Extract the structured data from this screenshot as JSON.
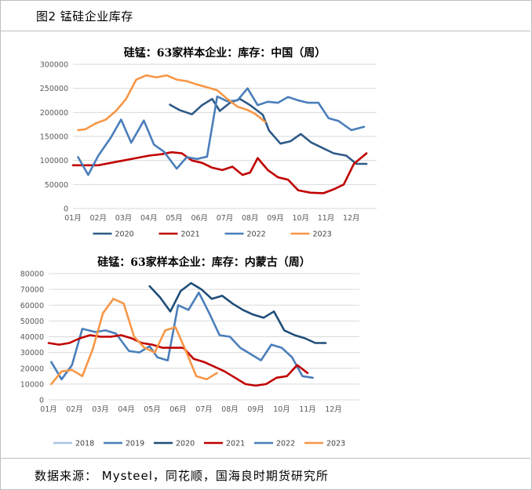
{
  "header": {
    "title": "图2 锰硅企业库存"
  },
  "footer": {
    "source": "数据来源：  Mysteel，同花顺，国海良时期货研究所"
  },
  "chart_data": [
    {
      "type": "line",
      "title": "硅锰：63家样本企业：库存：中国（周）",
      "x_labels": [
        "01月",
        "02月",
        "03月",
        "04月",
        "05月",
        "06月",
        "07月",
        "08月",
        "09月",
        "10月",
        "11月",
        "12月"
      ],
      "x_domain": [
        1,
        13
      ],
      "ylim": [
        0,
        300000
      ],
      "y_ticks": [
        0,
        50000,
        100000,
        150000,
        200000,
        250000,
        300000
      ],
      "grid": true,
      "legend_position": "bottom",
      "series": [
        {
          "name": "2020",
          "color": "#2e5a87",
          "x": [
            4.83,
            5.2,
            5.7,
            6.1,
            6.5,
            6.8,
            7.2,
            7.6,
            8.0,
            8.5,
            8.75,
            9.2,
            9.6,
            10.0,
            10.4,
            10.9,
            11.3,
            11.8,
            12.2,
            12.6
          ],
          "y": [
            216000,
            205000,
            196000,
            215000,
            228000,
            203000,
            220000,
            228000,
            215000,
            195000,
            162000,
            135000,
            140000,
            155000,
            138000,
            125000,
            115000,
            110000,
            93000,
            93000
          ]
        },
        {
          "name": "2021",
          "color": "#c00000",
          "x": [
            1.0,
            1.5,
            2.0,
            2.5,
            3.0,
            3.5,
            4.0,
            4.5,
            4.9,
            5.3,
            5.7,
            6.1,
            6.5,
            6.9,
            7.3,
            7.7,
            8.0,
            8.3,
            8.7,
            9.1,
            9.5,
            9.9,
            10.4,
            10.9,
            11.3,
            11.7,
            12.1,
            12.6
          ],
          "y": [
            90000,
            90000,
            90000,
            95000,
            100000,
            105000,
            110000,
            113000,
            117000,
            115000,
            100000,
            95000,
            85000,
            80000,
            87000,
            70000,
            75000,
            105000,
            80000,
            65000,
            60000,
            38000,
            33000,
            32000,
            40000,
            50000,
            93000,
            115000
          ]
        },
        {
          "name": "2022",
          "color": "#4a7ebb",
          "x": [
            1.2,
            1.6,
            2.0,
            2.5,
            2.9,
            3.3,
            3.8,
            4.2,
            4.6,
            5.1,
            5.5,
            5.9,
            6.3,
            6.7,
            7.1,
            7.5,
            7.9,
            8.3,
            8.7,
            9.1,
            9.5,
            9.9,
            10.3,
            10.7,
            11.1,
            11.5,
            12.0,
            12.5
          ],
          "y": [
            107000,
            70000,
            110000,
            148000,
            185000,
            137000,
            183000,
            133000,
            118000,
            83000,
            107000,
            103000,
            108000,
            233000,
            223000,
            225000,
            250000,
            215000,
            222000,
            220000,
            232000,
            225000,
            220000,
            220000,
            188000,
            182000,
            163000,
            170000
          ]
        },
        {
          "name": "2023",
          "color": "#f79646",
          "x": [
            1.2,
            1.5,
            1.9,
            2.3,
            2.7,
            3.1,
            3.5,
            3.9,
            4.3,
            4.7,
            5.1,
            5.5,
            5.9,
            6.3,
            6.7,
            7.1,
            7.5,
            7.9,
            8.2,
            8.6
          ],
          "y": [
            163000,
            165000,
            177000,
            185000,
            203000,
            228000,
            268000,
            277000,
            273000,
            277000,
            268000,
            265000,
            258000,
            252000,
            246000,
            228000,
            212000,
            205000,
            197000,
            180000
          ]
        }
      ]
    },
    {
      "type": "line",
      "title": "硅锰：63家样本企业：库存：内蒙古（周）",
      "x_labels": [
        "01月",
        "02月",
        "03月",
        "04月",
        "05月",
        "06月",
        "07月",
        "08月",
        "09月",
        "10月",
        "11月",
        "12月"
      ],
      "x_domain": [
        1,
        13
      ],
      "ylim": [
        0,
        80000
      ],
      "y_ticks": [
        0,
        10000,
        20000,
        30000,
        40000,
        50000,
        60000,
        70000,
        80000
      ],
      "grid": true,
      "legend_position": "bottom",
      "series": [
        {
          "name": "2018",
          "color": "#a9c4e4",
          "x": [],
          "y": []
        },
        {
          "name": "2019",
          "color": "#4a7ebb",
          "x": [
            1.1,
            1.5,
            1.9,
            2.3,
            2.8,
            3.2,
            3.6,
            4.1,
            4.5,
            4.9,
            5.2,
            5.6,
            6.0,
            6.4,
            6.8,
            7.2,
            7.6,
            8.0,
            8.4,
            8.8,
            9.2,
            9.6,
            10.0,
            10.4,
            10.8,
            11.2,
            11.6,
            12.0,
            12.4,
            12.8
          ],
          "y": [
            24000,
            13000,
            22000,
            45000,
            43000,
            44000,
            42000,
            31000,
            30000,
            34000,
            27000,
            25000,
            60000,
            57000,
            68000,
            55000,
            41000,
            40000,
            33000,
            29000,
            25000,
            35000,
            33000,
            27000,
            15000,
            14000,
            null,
            null,
            null,
            null
          ]
        },
        {
          "name": "2020",
          "color": "#1f4e79",
          "x": [
            4.9,
            5.3,
            5.7,
            6.1,
            6.5,
            6.9,
            7.3,
            7.7,
            8.1,
            8.5,
            8.9,
            9.3,
            9.7,
            10.1,
            10.5,
            10.9,
            11.3,
            11.7,
            12.1,
            12.5
          ],
          "y": [
            72000,
            65000,
            56000,
            69000,
            74000,
            70000,
            64000,
            66000,
            61000,
            57000,
            54000,
            52000,
            56000,
            44000,
            41000,
            39000,
            36000,
            36000,
            null,
            null
          ]
        },
        {
          "name": "2021",
          "color": "#c00000",
          "x": [
            1.0,
            1.4,
            1.8,
            2.2,
            2.6,
            3.0,
            3.4,
            3.8,
            4.2,
            4.6,
            5.0,
            5.4,
            5.8,
            6.2,
            6.6,
            7.0,
            7.4,
            7.8,
            8.2,
            8.6,
            9.0,
            9.4,
            9.8,
            10.2,
            10.6,
            11.0,
            11.4,
            11.8,
            12.2,
            12.6
          ],
          "y": [
            36000,
            35000,
            36000,
            39000,
            41000,
            40000,
            40000,
            41000,
            39000,
            36000,
            35000,
            33000,
            33000,
            33000,
            26000,
            24000,
            21000,
            18000,
            14000,
            10000,
            9000,
            10000,
            14000,
            15000,
            22000,
            17000,
            null,
            null,
            null,
            null
          ]
        },
        {
          "name": "2022",
          "color": "#4a7ebb",
          "x": [],
          "y": []
        },
        {
          "name": "2023",
          "color": "#f79646",
          "x": [
            1.1,
            1.5,
            1.9,
            2.3,
            2.7,
            3.1,
            3.5,
            3.9,
            4.3,
            4.7,
            5.1,
            5.5,
            5.9,
            6.3,
            6.7,
            7.1,
            7.5,
            7.9,
            8.3
          ],
          "y": [
            10000,
            18000,
            19000,
            15000,
            32000,
            55000,
            64000,
            61000,
            40000,
            33000,
            30000,
            44000,
            46000,
            31000,
            15000,
            13000,
            17000,
            null,
            null
          ]
        }
      ]
    }
  ]
}
